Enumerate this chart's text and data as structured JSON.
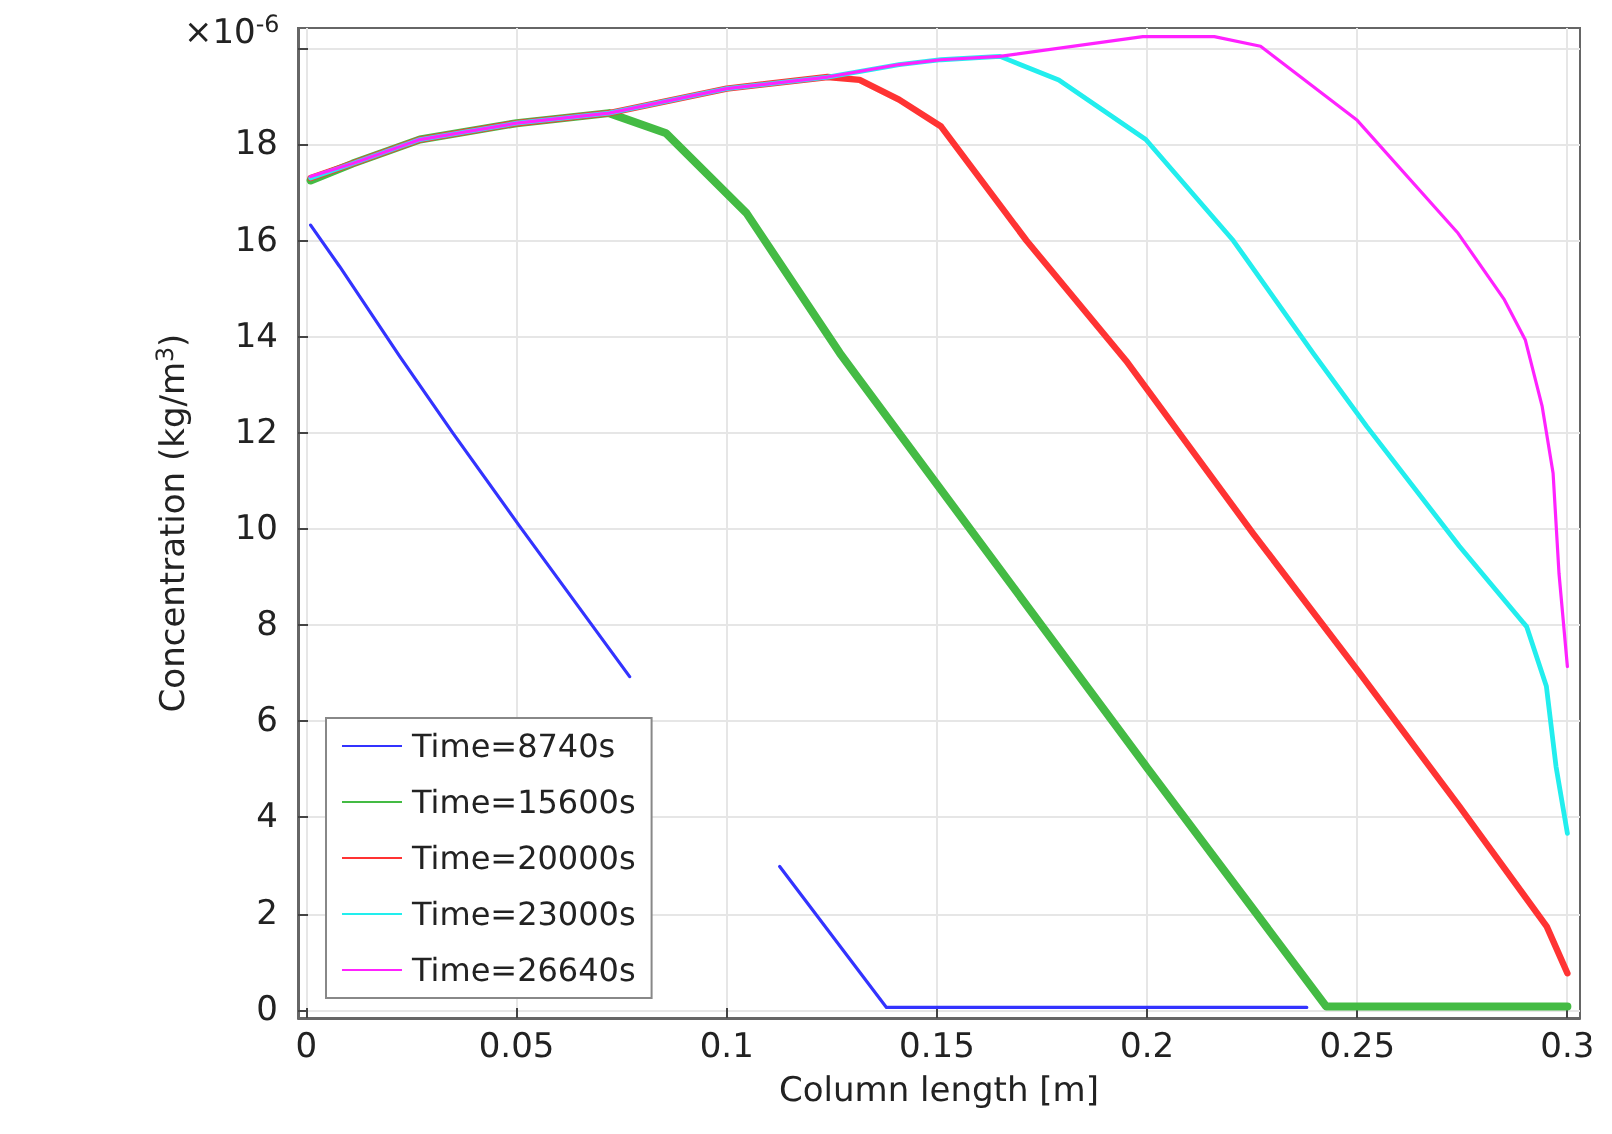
{
  "chart_data": {
    "type": "line",
    "xlabel": "Column length [m]",
    "ylabel": "Concentration (kg/m$^{3}$)",
    "annotations": [
      "×10$^{-6}$"
    ],
    "xlim": [
      -0.002,
      0.303
    ],
    "ylim": [
      -0.17,
      20.42
    ],
    "xticks": [
      0,
      0.05,
      0.1,
      0.15,
      0.2,
      0.25,
      0.3
    ],
    "yticks": [
      0,
      2,
      4,
      6,
      8,
      10,
      12,
      14,
      16,
      18,
      {
        "value": 20,
        "label": null
      }
    ],
    "grid": true,
    "legend": "bottom left",
    "marker": "none",
    "line_style": "solid",
    "series": [
      {
        "name": "Time=8740s",
        "color": "#3333ff",
        "x": [
          0.001,
          0.0079,
          0.0222,
          0.0349,
          0.0508,
          0.0769,
          0.095,
          0.1126,
          0.138,
          0.238
        ],
        "values": [
          16.32,
          15.46,
          13.59,
          11.99,
          10.05,
          6.93,
          null,
          2.98,
          0.05,
          0.05
        ]
      },
      {
        "name": "Time=15600s",
        "color": "#44bb44",
        "x": [
          0.001,
          0.011,
          0.027,
          0.05,
          0.072,
          0.0856,
          0.1047,
          0.1269,
          0.1316,
          0.1998,
          0.2426,
          0.3
        ],
        "values": [
          17.25,
          17.6,
          18.1,
          18.44,
          18.65,
          18.23,
          16.57,
          13.66,
          13.1,
          5.06,
          0.07,
          0.07
        ]
      },
      {
        "name": "Time=20000s",
        "color": "#ff3333",
        "x": [
          0.001,
          0.011,
          0.027,
          0.05,
          0.072,
          0.1,
          0.124,
          0.1316,
          0.141,
          0.151,
          0.1713,
          0.195,
          0.2252,
          0.2506,
          0.2743,
          0.2951,
          0.3
        ],
        "values": [
          17.3,
          17.6,
          18.1,
          18.44,
          18.65,
          19.16,
          19.4,
          19.34,
          18.93,
          18.37,
          16.0,
          13.5,
          9.91,
          7.0,
          4.23,
          1.73,
          0.76
        ]
      },
      {
        "name": "Time=23000s",
        "color": "#22eeee",
        "x": [
          0.001,
          0.011,
          0.027,
          0.05,
          0.072,
          0.1,
          0.124,
          0.141,
          0.151,
          0.165,
          0.179,
          0.1997,
          0.2205,
          0.2395,
          0.2523,
          0.2743,
          0.2903,
          0.295,
          0.2973,
          0.3
        ],
        "values": [
          17.3,
          17.6,
          18.1,
          18.44,
          18.65,
          19.16,
          19.4,
          19.66,
          19.76,
          19.83,
          19.34,
          18.1,
          16.0,
          13.66,
          12.13,
          9.64,
          7.97,
          6.73,
          5.06,
          3.67
        ]
      },
      {
        "name": "Time=26640s",
        "color": "#ff22ff",
        "x": [
          0.001,
          0.011,
          0.027,
          0.05,
          0.072,
          0.1,
          0.124,
          0.141,
          0.151,
          0.165,
          0.199,
          0.216,
          0.227,
          0.25,
          0.274,
          0.285,
          0.29,
          0.294,
          0.2966,
          0.298,
          0.3
        ],
        "values": [
          17.33,
          17.6,
          18.1,
          18.44,
          18.65,
          19.16,
          19.4,
          19.66,
          19.76,
          19.83,
          20.24,
          20.24,
          20.04,
          18.5,
          16.15,
          14.77,
          13.93,
          12.55,
          11.16,
          9.08,
          7.14
        ]
      }
    ]
  }
}
